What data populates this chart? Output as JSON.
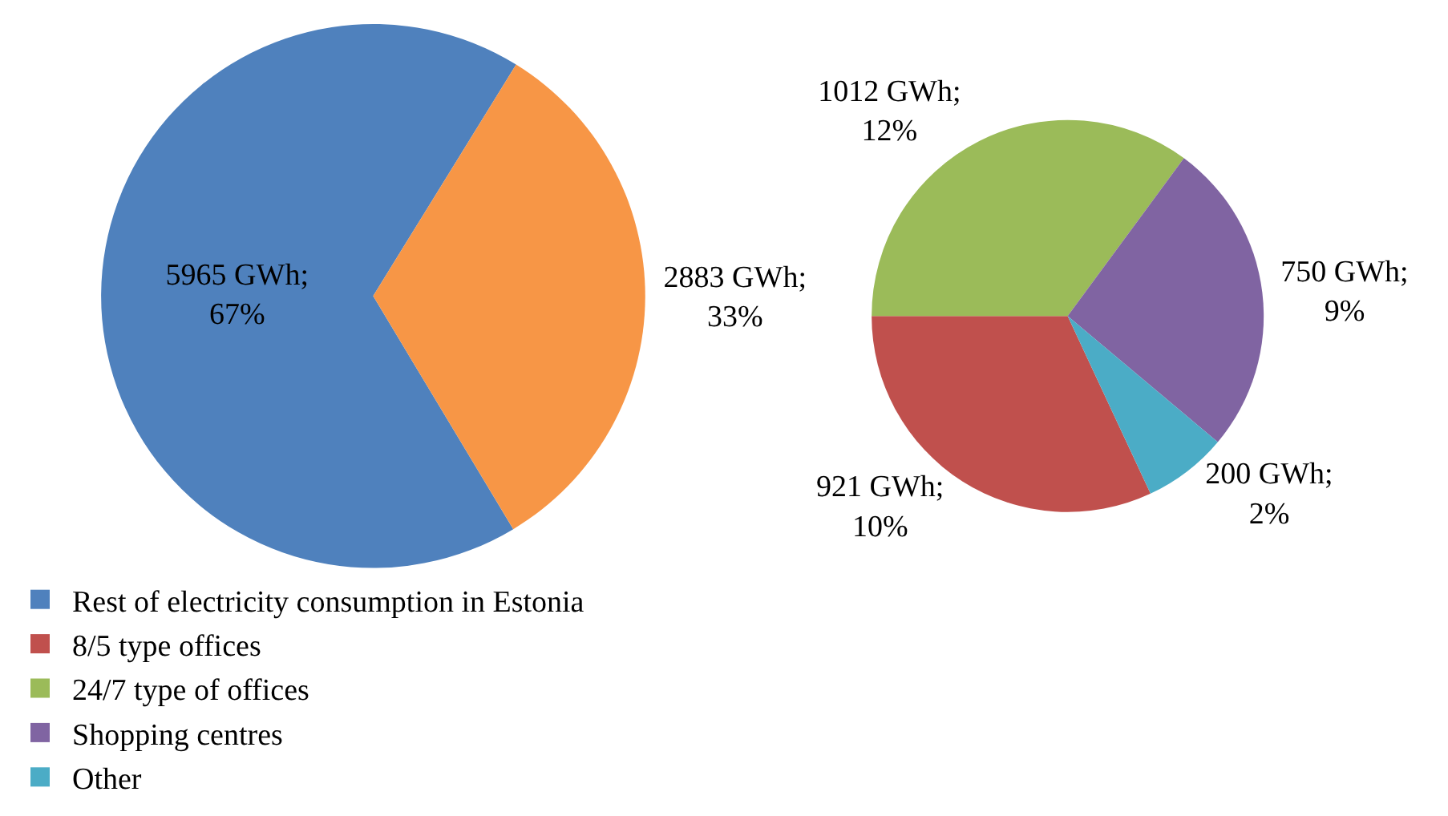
{
  "chart_data": [
    {
      "type": "pie",
      "categories": [
        "Rest of electricity consumption in Estonia",
        null
      ],
      "values": [
        5965,
        2883
      ],
      "colors": [
        "#4f81bd",
        "#f79646"
      ],
      "value_labels": [
        "5965 GWh; 67%",
        "2883 GWh; 33%"
      ],
      "legend": "bottom left"
    },
    {
      "type": "pie",
      "categories": [
        "8/5 type offices",
        "24/7 type of offices",
        "Shopping centres",
        "Other"
      ],
      "values": [
        921,
        1012,
        750,
        200
      ],
      "colors": [
        "#c0504d",
        "#9bbb59",
        "#8064a2",
        "#4bacc6"
      ],
      "value_labels": [
        "921 GWh; 10%",
        "1012 GWh; 12%",
        "750 GWh; 9%",
        "200 GWh; 2%"
      ],
      "legend": "bottom left"
    }
  ]
}
